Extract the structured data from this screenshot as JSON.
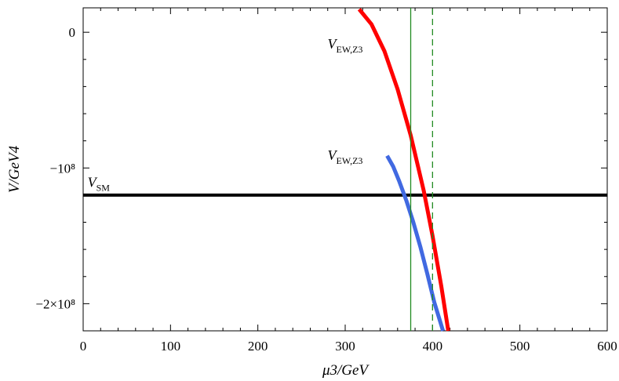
{
  "chart_data": {
    "type": "line",
    "title": "",
    "xlabel": "μ3/GeV",
    "ylabel": "V/GeV4",
    "xlim": [
      0,
      600
    ],
    "ylim": [
      -220000000,
      18000000
    ],
    "x_ticks": [
      0,
      100,
      200,
      300,
      400,
      500,
      600
    ],
    "x_tick_labels": [
      "0",
      "100",
      "200",
      "300",
      "400",
      "500",
      "600"
    ],
    "y_ticks": [
      0,
      -100000000,
      -200000000
    ],
    "y_tick_labels": [
      "0",
      "−10⁸",
      "−2×10⁸"
    ],
    "grid": false,
    "series": [
      {
        "name": "V_SM",
        "label_main": "V",
        "label_sub": "SM",
        "color": "#000000",
        "style": "solid",
        "x": [
          0,
          600
        ],
        "y": [
          -120000000,
          -120000000
        ]
      },
      {
        "name": "V_EW,Z3 (red)",
        "label_main": "V",
        "label_sub": "EW,Z3",
        "color": "#ff0000",
        "style": "solid",
        "x": [
          316,
          330,
          345,
          360,
          375,
          390,
          400,
          410,
          418
        ],
        "y": [
          17000000,
          6000000,
          -14000000,
          -42000000,
          -76000000,
          -117000000,
          -150000000,
          -187000000,
          -220000000
        ]
      },
      {
        "name": "V_EW,Z3 (blue)",
        "label_main": "V",
        "label_sub": "EW,Z3",
        "color": "#4169e1",
        "style": "solid",
        "x": [
          348,
          355,
          362,
          370,
          378,
          386,
          394,
          402,
          412
        ],
        "y": [
          -91000000,
          -99000000,
          -110000000,
          -124000000,
          -140000000,
          -158000000,
          -178000000,
          -199000000,
          -220000000
        ]
      },
      {
        "name": "μ3 = 375 GeV",
        "color": "#228b22",
        "style": "solid",
        "x": [
          375,
          375
        ],
        "y": [
          -220000000,
          18000000
        ]
      },
      {
        "name": "μ3 = 400 GeV",
        "color": "#228b22",
        "style": "dashed",
        "x": [
          400,
          400
        ],
        "y": [
          -220000000,
          18000000
        ]
      }
    ],
    "annotations": [
      {
        "text_main": "V",
        "text_sub": "EW,Z3",
        "x": 300,
        "y": -12000000,
        "ref": "red"
      },
      {
        "text_main": "V",
        "text_sub": "EW,Z3",
        "x": 300,
        "y": -94000000,
        "ref": "blue"
      },
      {
        "text_main": "V",
        "text_sub": "SM",
        "x": 5,
        "y": -114000000,
        "ref": "black"
      }
    ]
  }
}
